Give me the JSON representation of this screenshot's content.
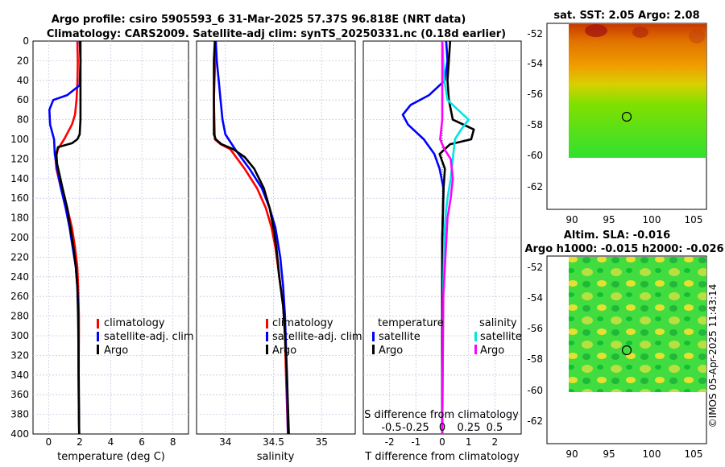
{
  "header": {
    "title_line1": "Argo profile: csiro 5905593_6 31-Mar-2025 57.37S 96.818E (NRT data)",
    "title_line2": "Climatology: CARS2009. Satellite-adj clim: synTS_20250331.nc (0.18d earlier)"
  },
  "colors": {
    "climatology": "#ff0000",
    "satellite": "#0000ff",
    "argo": "#000000",
    "sat_salinity": "#00e5e5",
    "argo_salinity": "#ff00ff"
  },
  "chart_data": [
    {
      "type": "line",
      "xlabel": "temperature (deg C)",
      "ylabel": "",
      "xlim": [
        -1,
        9
      ],
      "ylim": [
        400,
        0
      ],
      "xticks": [
        "0",
        "2",
        "4",
        "6",
        "8"
      ],
      "xtick_values": [
        0,
        2,
        4,
        6,
        8
      ],
      "yticks": [
        "0",
        "20",
        "40",
        "60",
        "80",
        "100",
        "120",
        "140",
        "160",
        "180",
        "200",
        "220",
        "240",
        "260",
        "280",
        "300",
        "320",
        "340",
        "360",
        "380",
        "400"
      ],
      "legend": [
        "climatology",
        "satellite-adj. clim",
        "Argo"
      ],
      "series": [
        {
          "name": "climatology",
          "color": "#ff0000",
          "x": [
            1.85,
            1.88,
            1.86,
            1.8,
            1.7,
            1.5,
            1.0,
            0.6,
            0.45,
            0.5,
            0.8,
            1.2,
            1.5,
            1.7,
            1.85,
            1.9,
            1.95,
            1.95,
            1.93,
            1.95,
            1.97
          ],
          "depth": [
            0,
            20,
            40,
            60,
            75,
            85,
            100,
            110,
            120,
            130,
            150,
            170,
            190,
            210,
            230,
            250,
            280,
            300,
            340,
            380,
            400
          ]
        },
        {
          "name": "satellite-adj. clim",
          "color": "#0000ff",
          "x": [
            2.0,
            2.05,
            2.0,
            1.2,
            0.3,
            0.05,
            0.1,
            0.35,
            0.4,
            0.55,
            0.8,
            1.1,
            1.35,
            1.55,
            1.75,
            1.85,
            1.9,
            1.92,
            1.93,
            1.95,
            1.97
          ],
          "depth": [
            0,
            20,
            45,
            55,
            60,
            70,
            85,
            100,
            115,
            130,
            150,
            170,
            190,
            210,
            230,
            250,
            270,
            300,
            340,
            380,
            400
          ]
        },
        {
          "name": "Argo",
          "color": "#000000",
          "x": [
            2.05,
            2.05,
            2.05,
            2.05,
            2.0,
            1.85,
            1.5,
            0.6,
            0.5,
            0.55,
            0.9,
            1.2,
            1.4,
            1.6,
            1.75,
            1.85,
            1.9,
            1.93,
            1.95,
            1.97
          ],
          "depth": [
            0,
            40,
            60,
            80,
            95,
            100,
            104,
            108,
            115,
            125,
            150,
            170,
            190,
            210,
            230,
            250,
            280,
            320,
            360,
            400
          ]
        }
      ]
    },
    {
      "type": "line",
      "xlabel": "salinity",
      "ylabel": "",
      "xlim": [
        33.7,
        35.35
      ],
      "ylim": [
        400,
        0
      ],
      "xticks": [
        "34",
        "34.5",
        "35"
      ],
      "xtick_values": [
        34,
        34.5,
        35
      ],
      "legend": [
        "climatology",
        "satellite-adj. clim",
        "Argo"
      ],
      "series": [
        {
          "name": "climatology",
          "color": "#ff0000",
          "x": [
            33.9,
            33.89,
            33.88,
            33.89,
            33.95,
            34.05,
            34.2,
            34.33,
            34.42,
            34.48,
            34.52,
            34.56,
            34.6,
            34.62,
            34.63,
            34.65
          ],
          "depth": [
            0,
            30,
            60,
            100,
            105,
            110,
            130,
            150,
            170,
            190,
            210,
            240,
            270,
            300,
            340,
            400
          ]
        },
        {
          "name": "satellite-adj. clim",
          "color": "#0000ff",
          "x": [
            33.9,
            33.91,
            33.93,
            33.95,
            33.97,
            34.0,
            34.1,
            34.25,
            34.38,
            34.46,
            34.52,
            34.57,
            34.6,
            34.62,
            34.64,
            34.65
          ],
          "depth": [
            0,
            20,
            40,
            60,
            80,
            95,
            110,
            130,
            150,
            170,
            190,
            220,
            250,
            280,
            340,
            400
          ]
        },
        {
          "name": "Argo",
          "color": "#000000",
          "x": [
            33.89,
            33.88,
            33.88,
            33.88,
            33.9,
            33.96,
            34.08,
            34.2,
            34.3,
            34.4,
            34.46,
            34.5,
            34.53,
            34.56,
            34.6,
            34.62,
            34.64,
            34.66
          ],
          "depth": [
            0,
            20,
            60,
            95,
            100,
            105,
            110,
            118,
            130,
            150,
            170,
            190,
            210,
            240,
            270,
            300,
            340,
            400
          ]
        }
      ]
    },
    {
      "type": "line",
      "xlabel": "T difference from climatology",
      "ylabel": "",
      "xlim": [
        -3,
        3
      ],
      "ylim": [
        400,
        0
      ],
      "xticks": [
        "-2",
        "-1",
        "0",
        "1",
        "2"
      ],
      "xtick_values": [
        -2,
        -1,
        0,
        1,
        2
      ],
      "top_axis_label": "S difference from climatology",
      "top_xticks": [
        "-0.5",
        "-0.25",
        "0",
        "0.25",
        "0.5"
      ],
      "legend_left": [
        "temperature",
        "satellite",
        "Argo"
      ],
      "legend_right": [
        "salinity",
        "satellite",
        "Argo"
      ],
      "series": [
        {
          "name": "T satellite",
          "color": "#0000ff",
          "x": [
            0.15,
            0.2,
            0.1,
            -0.5,
            -1.2,
            -1.5,
            -1.3,
            -0.7,
            -0.3,
            -0.1,
            0.05,
            0.0,
            0.0,
            0.0,
            0.0,
            0.0
          ],
          "depth": [
            0,
            20,
            40,
            55,
            65,
            75,
            85,
            100,
            115,
            130,
            150,
            200,
            250,
            300,
            350,
            400
          ]
        },
        {
          "name": "T Argo",
          "color": "#000000",
          "x": [
            0.3,
            0.25,
            0.2,
            0.25,
            0.4,
            1.2,
            1.1,
            0.3,
            -0.1,
            0.1,
            0.05,
            0.0,
            0.0,
            0.0,
            0.0
          ],
          "depth": [
            0,
            20,
            40,
            60,
            80,
            90,
            100,
            105,
            115,
            130,
            150,
            200,
            250,
            300,
            400
          ]
        },
        {
          "name": "S satellite",
          "color": "#00e5e5",
          "x": [
            0.0,
            0.02,
            0.05,
            0.15,
            0.25,
            0.18,
            0.12,
            0.1,
            0.08,
            0.05,
            0.03,
            0.02,
            0.01,
            0.0
          ],
          "depth": [
            0,
            40,
            60,
            70,
            80,
            90,
            100,
            120,
            140,
            160,
            180,
            200,
            250,
            400
          ]
        },
        {
          "name": "S Argo",
          "color": "#ff00ff",
          "x": [
            0.0,
            0.0,
            0.0,
            -0.01,
            -0.02,
            0.02,
            0.08,
            0.1,
            0.08,
            0.05,
            0.04,
            0.03,
            0.01,
            0.0
          ],
          "depth": [
            0,
            40,
            80,
            90,
            100,
            110,
            120,
            140,
            160,
            180,
            200,
            220,
            260,
            400
          ]
        }
      ]
    },
    {
      "type": "heatmap",
      "title": "sat. SST: 2.05 Argo: 2.08",
      "xlim": [
        88.5,
        106.5
      ],
      "ylim": [
        -63.8,
        -51.5
      ],
      "xticks": [
        "90",
        "95",
        "100",
        "105"
      ],
      "yticks": [
        "-52",
        "-54",
        "-56",
        "-58",
        "-60",
        "-62"
      ],
      "argo_position": {
        "lon": 96.818,
        "lat": -57.37
      }
    },
    {
      "type": "heatmap",
      "title_line1": "Altim. SLA: -0.016",
      "title_line2": "Argo h1000: -0.015 h2000: -0.026",
      "xlim": [
        88.5,
        106.5
      ],
      "ylim": [
        -63.8,
        -51.5
      ],
      "xticks": [
        "90",
        "95",
        "100",
        "105"
      ],
      "yticks": [
        "-52",
        "-54",
        "-56",
        "-58",
        "-60",
        "-62"
      ],
      "argo_position": {
        "lon": 96.818,
        "lat": -57.37
      }
    }
  ],
  "footer": {
    "credit": "©IMOS 05-Apr-2025 11:43:14"
  }
}
